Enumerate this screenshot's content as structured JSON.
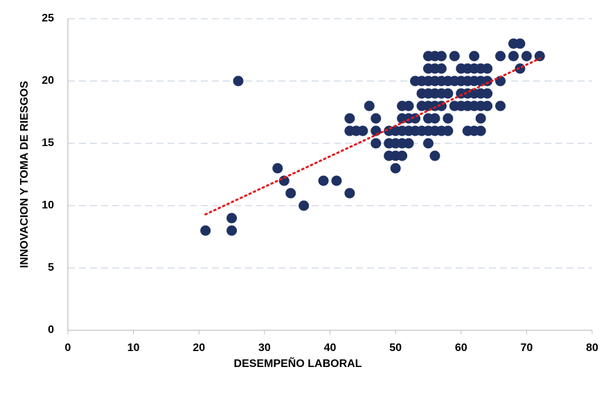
{
  "chart_data": {
    "type": "scatter",
    "xlabel": "DESEMPEÑO LABORAL",
    "ylabel": "INNOVACION Y TOMA DE RIESGOS",
    "xlim": [
      0,
      80
    ],
    "xticks": [
      0,
      10,
      20,
      30,
      40,
      50,
      60,
      70,
      80
    ],
    "ylim": [
      0,
      25
    ],
    "yticks": [
      0,
      5,
      10,
      15,
      20,
      25
    ],
    "grid": true,
    "series": [
      {
        "color": "#1f3163",
        "x": [
          21,
          25,
          25,
          26,
          32,
          33,
          34,
          36,
          39,
          41,
          43,
          43,
          43,
          44,
          45,
          46,
          47,
          47,
          47,
          49,
          49,
          49,
          50,
          50,
          50,
          50,
          51,
          51,
          51,
          51,
          51,
          52,
          52,
          52,
          52,
          53,
          53,
          53,
          54,
          54,
          54,
          54,
          55,
          55,
          55,
          55,
          55,
          55,
          55,
          55,
          56,
          56,
          56,
          56,
          56,
          56,
          56,
          56,
          57,
          57,
          57,
          57,
          57,
          57,
          58,
          58,
          58,
          58,
          59,
          59,
          59,
          60,
          60,
          60,
          60,
          61,
          61,
          61,
          61,
          61,
          62,
          62,
          62,
          62,
          62,
          62,
          63,
          63,
          63,
          63,
          63,
          63,
          64,
          64,
          64,
          64,
          66,
          66,
          66,
          68,
          68,
          69,
          69,
          70,
          72
        ],
        "y": [
          8,
          8,
          9,
          20,
          13,
          12,
          11,
          10,
          12,
          12,
          11,
          16,
          17,
          16,
          16,
          18,
          17,
          16,
          15,
          16,
          15,
          14,
          16,
          15,
          14,
          13,
          18,
          17,
          16,
          15,
          14,
          18,
          17,
          16,
          15,
          20,
          17,
          16,
          20,
          19,
          18,
          16,
          22,
          21,
          20,
          19,
          18,
          17,
          16,
          15,
          22,
          21,
          20,
          19,
          18,
          17,
          16,
          14,
          22,
          21,
          20,
          19,
          18,
          16,
          20,
          19,
          17,
          16,
          22,
          20,
          18,
          21,
          20,
          19,
          18,
          21,
          20,
          19,
          18,
          16,
          22,
          21,
          20,
          19,
          18,
          16,
          21,
          20,
          19,
          18,
          17,
          16,
          21,
          20,
          19,
          18,
          22,
          20,
          18,
          23,
          22,
          23,
          21,
          22,
          22
        ]
      }
    ],
    "trendline": {
      "color": "#e31b1b",
      "x": [
        21,
        72
      ],
      "y": [
        9.3,
        21.8
      ]
    }
  }
}
